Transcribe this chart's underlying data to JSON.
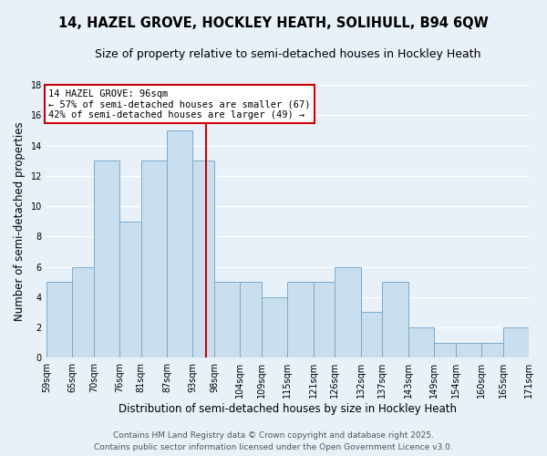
{
  "title": "14, HAZEL GROVE, HOCKLEY HEATH, SOLIHULL, B94 6QW",
  "subtitle": "Size of property relative to semi-detached houses in Hockley Heath",
  "xlabel": "Distribution of semi-detached houses by size in Hockley Heath",
  "ylabel": "Number of semi-detached properties",
  "bin_edges": [
    59,
    65,
    70,
    76,
    81,
    87,
    93,
    98,
    104,
    109,
    115,
    121,
    126,
    132,
    137,
    143,
    149,
    154,
    160,
    165,
    171
  ],
  "bin_labels": [
    "59sqm",
    "65sqm",
    "70sqm",
    "76sqm",
    "81sqm",
    "87sqm",
    "93sqm",
    "98sqm",
    "104sqm",
    "109sqm",
    "115sqm",
    "121sqm",
    "126sqm",
    "132sqm",
    "137sqm",
    "143sqm",
    "149sqm",
    "154sqm",
    "160sqm",
    "165sqm",
    "171sqm"
  ],
  "counts": [
    5,
    6,
    13,
    9,
    13,
    15,
    13,
    5,
    5,
    4,
    5,
    5,
    6,
    3,
    5,
    2,
    1,
    1,
    1,
    2
  ],
  "bar_color": "#c9dff0",
  "bar_edgecolor": "#7aabcf",
  "property_value": 96,
  "vline_color": "#cc0000",
  "annotation_title": "14 HAZEL GROVE: 96sqm",
  "annotation_line1": "← 57% of semi-detached houses are smaller (67)",
  "annotation_line2": "42% of semi-detached houses are larger (49) →",
  "annotation_box_edgecolor": "#cc0000",
  "annotation_box_facecolor": "#ffffff",
  "ylim": [
    0,
    18
  ],
  "yticks": [
    0,
    2,
    4,
    6,
    8,
    10,
    12,
    14,
    16,
    18
  ],
  "background_color": "#e8f0f8",
  "footer1": "Contains HM Land Registry data © Crown copyright and database right 2025.",
  "footer2": "Contains public sector information licensed under the Open Government Licence v3.0.",
  "grid_color": "#ffffff",
  "title_fontsize": 10.5,
  "subtitle_fontsize": 9,
  "axis_label_fontsize": 8.5,
  "tick_fontsize": 7,
  "annotation_fontsize": 7.5,
  "footer_fontsize": 6.5
}
